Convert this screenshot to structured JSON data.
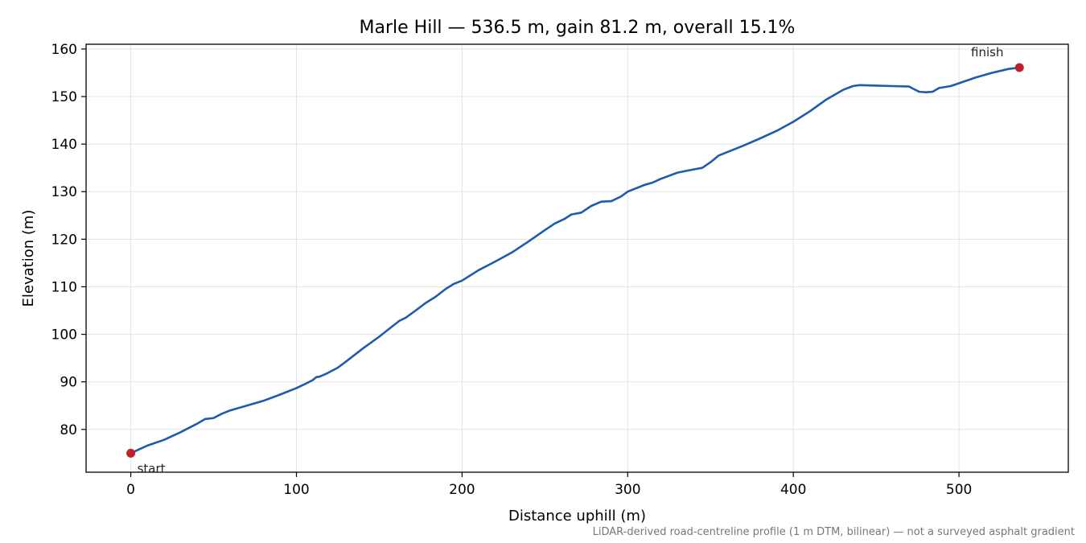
{
  "chart_data": {
    "type": "line",
    "title": "Marle Hill — 536.5 m, gain 81.2 m, overall 15.1%",
    "xlabel": "Distance uphill (m)",
    "ylabel": "Elevation (m)",
    "xlim": [
      -27,
      566
    ],
    "ylim": [
      71,
      161
    ],
    "xticks": [
      0,
      100,
      200,
      300,
      400,
      500
    ],
    "yticks": [
      80,
      90,
      100,
      110,
      120,
      130,
      140,
      150,
      160
    ],
    "grid": true,
    "series": [
      {
        "color": "#1f5bab",
        "x": [
          0,
          5,
          10,
          20,
          30,
          40,
          45,
          48,
          50,
          55,
          60,
          70,
          80,
          90,
          100,
          105,
          110,
          112,
          114,
          118,
          125,
          130,
          140,
          150,
          158,
          162,
          166,
          172,
          178,
          184,
          190,
          195,
          200,
          210,
          220,
          230,
          240,
          250,
          256,
          262,
          266,
          272,
          278,
          284,
          290,
          296,
          300,
          310,
          315,
          320,
          330,
          340,
          345,
          350,
          355,
          360,
          370,
          380,
          390,
          400,
          410,
          420,
          430,
          436,
          440,
          450,
          460,
          470,
          472,
          476,
          480,
          484,
          488,
          495,
          500,
          510,
          520,
          530,
          536.5
        ],
        "y": [
          75.0,
          75.8,
          76.6,
          77.8,
          79.4,
          81.2,
          82.2,
          82.3,
          82.4,
          83.3,
          84.0,
          85.0,
          86.0,
          87.3,
          88.7,
          89.5,
          90.4,
          91.0,
          91.1,
          91.7,
          93.0,
          94.3,
          97.0,
          99.5,
          101.7,
          102.8,
          103.5,
          105.0,
          106.6,
          107.9,
          109.5,
          110.6,
          111.3,
          113.5,
          115.3,
          117.2,
          119.5,
          121.9,
          123.3,
          124.3,
          125.2,
          125.6,
          127.0,
          127.9,
          128.0,
          129.0,
          130.0,
          131.4,
          131.9,
          132.7,
          134.0,
          134.7,
          135.0,
          136.2,
          137.6,
          138.3,
          139.7,
          141.2,
          142.8,
          144.7,
          146.9,
          149.4,
          151.4,
          152.2,
          152.4,
          152.3,
          152.2,
          152.1,
          151.7,
          151.0,
          150.9,
          151.0,
          151.8,
          152.2,
          152.8,
          154.0,
          155.0,
          155.8,
          156.1
        ]
      }
    ],
    "annotations": {
      "start": {
        "label": "start",
        "x": 0,
        "y": 75.0,
        "color": "#c0202a"
      },
      "finish": {
        "label": "finish",
        "x": 536.5,
        "y": 156.1,
        "color": "#c0202a"
      }
    },
    "footnote": "LiDAR-derived road-centreline profile (1 m DTM, bilinear) — not a surveyed asphalt gradient"
  }
}
